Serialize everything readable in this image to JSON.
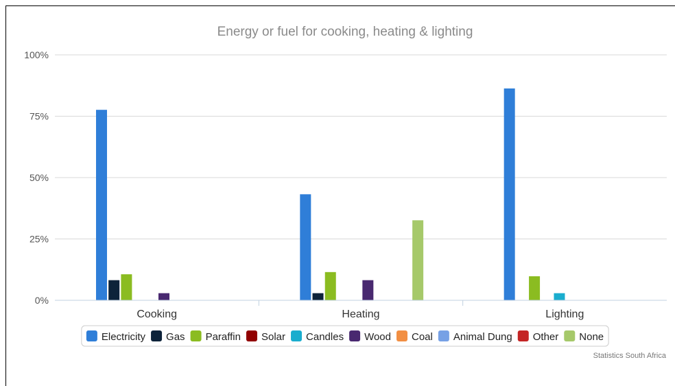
{
  "chart_data": {
    "type": "bar",
    "title": "Energy or fuel for cooking, heating & lighting",
    "xlabel": "",
    "ylabel": "",
    "categories": [
      "Cooking",
      "Heating",
      "Lighting"
    ],
    "ylim": [
      0,
      100
    ],
    "y_ticks": [
      0,
      25,
      50,
      75,
      100
    ],
    "y_tick_labels": [
      "0%",
      "25%",
      "50%",
      "75%",
      "100%"
    ],
    "grid": true,
    "legend_position": "bottom",
    "series": [
      {
        "name": "Electricity",
        "color": "#2f7ed8",
        "values": [
          77.6,
          43.2,
          86.3
        ]
      },
      {
        "name": "Gas",
        "color": "#0d233a",
        "values": [
          8.2,
          2.9,
          0
        ]
      },
      {
        "name": "Paraffin",
        "color": "#8bbc21",
        "values": [
          10.6,
          11.5,
          9.8
        ]
      },
      {
        "name": "Solar",
        "color": "#910000",
        "values": [
          0,
          0,
          0
        ]
      },
      {
        "name": "Candles",
        "color": "#1aadce",
        "values": [
          0,
          0,
          2.9
        ]
      },
      {
        "name": "Wood",
        "color": "#492970",
        "values": [
          2.9,
          8.2,
          0
        ]
      },
      {
        "name": "Coal",
        "color": "#f28f43",
        "values": [
          0,
          0,
          0
        ]
      },
      {
        "name": "Animal Dung",
        "color": "#77a1e5",
        "values": [
          0,
          0,
          0
        ]
      },
      {
        "name": "Other",
        "color": "#c42525",
        "values": [
          0,
          0,
          0
        ]
      },
      {
        "name": "None",
        "color": "#a6c96a",
        "values": [
          0,
          32.6,
          0
        ]
      }
    ],
    "credit": "Statistics South Africa"
  }
}
